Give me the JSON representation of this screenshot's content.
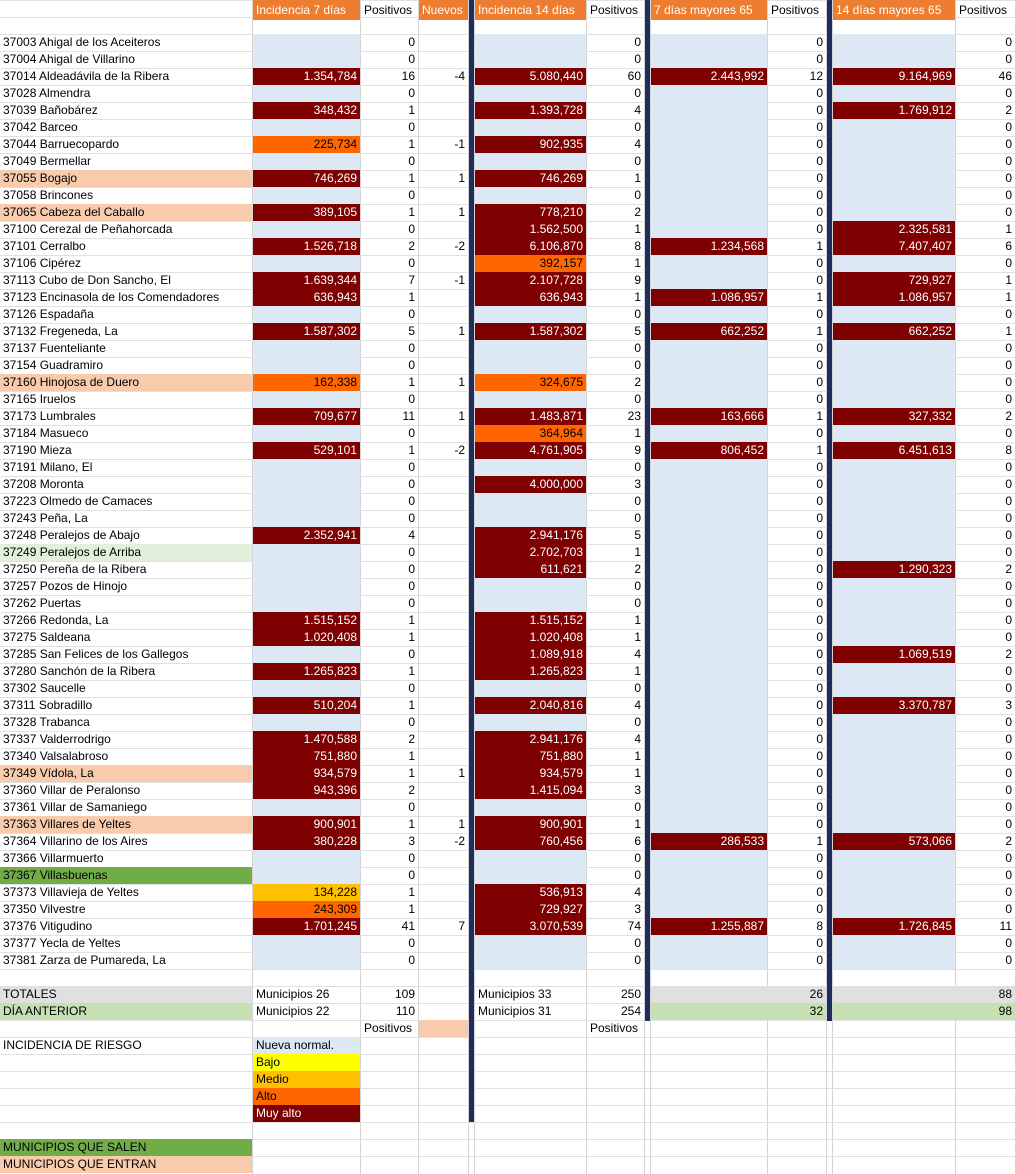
{
  "headers": {
    "inc7": "Incidencia 7 días",
    "pos7": "Positivos",
    "nuevos": "Nuevos",
    "inc14": "Incidencia 14 días",
    "pos14": "Positivos",
    "may7": "7 días mayores 65",
    "pos_may7": "Positivos",
    "may14": "14 días mayores 65",
    "pos_may14": "Positivos"
  },
  "rows": [
    {
      "m": "37003 Ahigal de los Aceiteros",
      "mc": "",
      "i7": "",
      "c7": "nn",
      "p7": "0",
      "n": "",
      "i14": "",
      "c14": "nn",
      "p14": "0",
      "m7": "",
      "cm7": "nn",
      "pm7": "0",
      "m14": "",
      "cm14": "nn",
      "pm14": "0"
    },
    {
      "m": "37004 Ahigal de Villarino",
      "mc": "",
      "i7": "",
      "c7": "nn",
      "p7": "0",
      "n": "",
      "i14": "",
      "c14": "nn",
      "p14": "0",
      "m7": "",
      "cm7": "nn",
      "pm7": "0",
      "m14": "",
      "cm14": "nn",
      "pm14": "0"
    },
    {
      "m": "37014 Aldeadávila de la Ribera",
      "mc": "",
      "i7": "1.354,784",
      "c7": "ma",
      "p7": "16",
      "n": "-4",
      "i14": "5.080,440",
      "c14": "ma",
      "p14": "60",
      "m7": "2.443,992",
      "cm7": "ma",
      "pm7": "12",
      "m14": "9.164,969",
      "cm14": "ma",
      "pm14": "46"
    },
    {
      "m": "37028 Almendra",
      "mc": "",
      "i7": "",
      "c7": "nn",
      "p7": "0",
      "n": "",
      "i14": "",
      "c14": "nn",
      "p14": "0",
      "m7": "",
      "cm7": "nn",
      "pm7": "0",
      "m14": "",
      "cm14": "nn",
      "pm14": "0"
    },
    {
      "m": "37039 Bañobárez",
      "mc": "",
      "i7": "348,432",
      "c7": "ma",
      "p7": "1",
      "n": "",
      "i14": "1.393,728",
      "c14": "ma",
      "p14": "4",
      "m7": "",
      "cm7": "nn",
      "pm7": "0",
      "m14": "1.769,912",
      "cm14": "ma",
      "pm14": "2"
    },
    {
      "m": "37042 Barceo",
      "mc": "",
      "i7": "",
      "c7": "nn",
      "p7": "0",
      "n": "",
      "i14": "",
      "c14": "nn",
      "p14": "0",
      "m7": "",
      "cm7": "nn",
      "pm7": "0",
      "m14": "",
      "cm14": "nn",
      "pm14": "0"
    },
    {
      "m": "37044 Barruecopardo",
      "mc": "",
      "i7": "225,734",
      "c7": "al",
      "p7": "1",
      "n": "-1",
      "i14": "902,935",
      "c14": "ma",
      "p14": "4",
      "m7": "",
      "cm7": "nn",
      "pm7": "0",
      "m14": "",
      "cm14": "nn",
      "pm14": "0"
    },
    {
      "m": "37049 Bermellar",
      "mc": "",
      "i7": "",
      "c7": "nn",
      "p7": "0",
      "n": "",
      "i14": "",
      "c14": "nn",
      "p14": "0",
      "m7": "",
      "cm7": "nn",
      "pm7": "0",
      "m14": "",
      "cm14": "nn",
      "pm14": "0"
    },
    {
      "m": "37055 Bogajo",
      "mc": "en",
      "i7": "746,269",
      "c7": "ma",
      "p7": "1",
      "n": "1",
      "i14": "746,269",
      "c14": "ma",
      "p14": "1",
      "m7": "",
      "cm7": "nn",
      "pm7": "0",
      "m14": "",
      "cm14": "nn",
      "pm14": "0"
    },
    {
      "m": "37058 Brincones",
      "mc": "",
      "i7": "",
      "c7": "nn",
      "p7": "0",
      "n": "",
      "i14": "",
      "c14": "nn",
      "p14": "0",
      "m7": "",
      "cm7": "nn",
      "pm7": "0",
      "m14": "",
      "cm14": "nn",
      "pm14": "0"
    },
    {
      "m": "37065 Cabeza del Caballo",
      "mc": "en",
      "i7": "389,105",
      "c7": "ma",
      "p7": "1",
      "n": "1",
      "i14": "778,210",
      "c14": "ma",
      "p14": "2",
      "m7": "",
      "cm7": "nn",
      "pm7": "0",
      "m14": "",
      "cm14": "nn",
      "pm14": "0"
    },
    {
      "m": "37100 Cerezal de Peñahorcada",
      "mc": "",
      "i7": "",
      "c7": "nn",
      "p7": "0",
      "n": "",
      "i14": "1.562,500",
      "c14": "ma",
      "p14": "1",
      "m7": "",
      "cm7": "nn",
      "pm7": "0",
      "m14": "2.325,581",
      "cm14": "ma",
      "pm14": "1"
    },
    {
      "m": "37101 Cerralbo",
      "mc": "",
      "i7": "1.526,718",
      "c7": "ma",
      "p7": "2",
      "n": "-2",
      "i14": "6.106,870",
      "c14": "ma",
      "p14": "8",
      "m7": "1.234,568",
      "cm7": "ma",
      "pm7": "1",
      "m14": "7.407,407",
      "cm14": "ma",
      "pm14": "6"
    },
    {
      "m": "37106 Cipérez",
      "mc": "",
      "i7": "",
      "c7": "nn",
      "p7": "0",
      "n": "",
      "i14": "392,157",
      "c14": "al",
      "p14": "1",
      "m7": "",
      "cm7": "nn",
      "pm7": "0",
      "m14": "",
      "cm14": "nn",
      "pm14": "0"
    },
    {
      "m": "37113 Cubo de Don Sancho, El",
      "mc": "",
      "i7": "1.639,344",
      "c7": "ma",
      "p7": "7",
      "n": "-1",
      "i14": "2.107,728",
      "c14": "ma",
      "p14": "9",
      "m7": "",
      "cm7": "nn",
      "pm7": "0",
      "m14": "729,927",
      "cm14": "ma",
      "pm14": "1"
    },
    {
      "m": "37123 Encinasola de los Comendadores",
      "mc": "",
      "i7": "636,943",
      "c7": "ma",
      "p7": "1",
      "n": "",
      "i14": "636,943",
      "c14": "ma",
      "p14": "1",
      "m7": "1.086,957",
      "cm7": "ma",
      "pm7": "1",
      "m14": "1.086,957",
      "cm14": "ma",
      "pm14": "1"
    },
    {
      "m": "37126 Espadaña",
      "mc": "",
      "i7": "",
      "c7": "nn",
      "p7": "0",
      "n": "",
      "i14": "",
      "c14": "nn",
      "p14": "0",
      "m7": "",
      "cm7": "nn",
      "pm7": "0",
      "m14": "",
      "cm14": "nn",
      "pm14": "0"
    },
    {
      "m": "37132 Fregeneda, La",
      "mc": "",
      "i7": "1.587,302",
      "c7": "ma",
      "p7": "5",
      "n": "1",
      "i14": "1.587,302",
      "c14": "ma",
      "p14": "5",
      "m7": "662,252",
      "cm7": "ma",
      "pm7": "1",
      "m14": "662,252",
      "cm14": "ma",
      "pm14": "1"
    },
    {
      "m": "37137 Fuenteliante",
      "mc": "",
      "i7": "",
      "c7": "nn",
      "p7": "0",
      "n": "",
      "i14": "",
      "c14": "nn",
      "p14": "0",
      "m7": "",
      "cm7": "nn",
      "pm7": "0",
      "m14": "",
      "cm14": "nn",
      "pm14": "0"
    },
    {
      "m": "37154 Guadramiro",
      "mc": "",
      "i7": "",
      "c7": "nn",
      "p7": "0",
      "n": "",
      "i14": "",
      "c14": "nn",
      "p14": "0",
      "m7": "",
      "cm7": "nn",
      "pm7": "0",
      "m14": "",
      "cm14": "nn",
      "pm14": "0"
    },
    {
      "m": "37160 Hinojosa de Duero",
      "mc": "en",
      "i7": "162,338",
      "c7": "al",
      "p7": "1",
      "n": "1",
      "i14": "324,675",
      "c14": "al",
      "p14": "2",
      "m7": "",
      "cm7": "nn",
      "pm7": "0",
      "m14": "",
      "cm14": "nn",
      "pm14": "0"
    },
    {
      "m": "37165 Iruelos",
      "mc": "",
      "i7": "",
      "c7": "nn",
      "p7": "0",
      "n": "",
      "i14": "",
      "c14": "nn",
      "p14": "0",
      "m7": "",
      "cm7": "nn",
      "pm7": "0",
      "m14": "",
      "cm14": "nn",
      "pm14": "0"
    },
    {
      "m": "37173 Lumbrales",
      "mc": "",
      "i7": "709,677",
      "c7": "ma",
      "p7": "11",
      "n": "1",
      "i14": "1.483,871",
      "c14": "ma",
      "p14": "23",
      "m7": "163,666",
      "cm7": "ma",
      "pm7": "1",
      "m14": "327,332",
      "cm14": "ma",
      "pm14": "2"
    },
    {
      "m": "37184 Masueco",
      "mc": "",
      "i7": "",
      "c7": "nn",
      "p7": "0",
      "n": "",
      "i14": "364,964",
      "c14": "al",
      "p14": "1",
      "m7": "",
      "cm7": "nn",
      "pm7": "0",
      "m14": "",
      "cm14": "nn",
      "pm14": "0"
    },
    {
      "m": "37190 Mieza",
      "mc": "",
      "i7": "529,101",
      "c7": "ma",
      "p7": "1",
      "n": "-2",
      "i14": "4.761,905",
      "c14": "ma",
      "p14": "9",
      "m7": "806,452",
      "cm7": "ma",
      "pm7": "1",
      "m14": "6.451,613",
      "cm14": "ma",
      "pm14": "8"
    },
    {
      "m": "37191 Milano, El",
      "mc": "",
      "i7": "",
      "c7": "nn",
      "p7": "0",
      "n": "",
      "i14": "",
      "c14": "nn",
      "p14": "0",
      "m7": "",
      "cm7": "nn",
      "pm7": "0",
      "m14": "",
      "cm14": "nn",
      "pm14": "0"
    },
    {
      "m": "37208 Moronta",
      "mc": "",
      "i7": "",
      "c7": "nn",
      "p7": "0",
      "n": "",
      "i14": "4.000,000",
      "c14": "ma",
      "p14": "3",
      "m7": "",
      "cm7": "nn",
      "pm7": "0",
      "m14": "",
      "cm14": "nn",
      "pm14": "0"
    },
    {
      "m": "37223 Olmedo de Camaces",
      "mc": "",
      "i7": "",
      "c7": "nn",
      "p7": "0",
      "n": "",
      "i14": "",
      "c14": "nn",
      "p14": "0",
      "m7": "",
      "cm7": "nn",
      "pm7": "0",
      "m14": "",
      "cm14": "nn",
      "pm14": "0"
    },
    {
      "m": "37243 Peña, La",
      "mc": "",
      "i7": "",
      "c7": "nn",
      "p7": "0",
      "n": "",
      "i14": "",
      "c14": "nn",
      "p14": "0",
      "m7": "",
      "cm7": "nn",
      "pm7": "0",
      "m14": "",
      "cm14": "nn",
      "pm14": "0"
    },
    {
      "m": "37248 Peralejos de Abajo",
      "mc": "",
      "i7": "2.352,941",
      "c7": "ma",
      "p7": "4",
      "n": "",
      "i14": "2.941,176",
      "c14": "ma",
      "p14": "5",
      "m7": "",
      "cm7": "nn",
      "pm7": "0",
      "m14": "",
      "cm14": "nn",
      "pm14": "0"
    },
    {
      "m": "37249 Peralejos de Arriba",
      "mc": "lg",
      "i7": "",
      "c7": "nn",
      "p7": "0",
      "n": "",
      "i14": "2.702,703",
      "c14": "ma",
      "p14": "1",
      "m7": "",
      "cm7": "nn",
      "pm7": "0",
      "m14": "",
      "cm14": "nn",
      "pm14": "0"
    },
    {
      "m": "37250 Pereña de la Ribera",
      "mc": "",
      "i7": "",
      "c7": "nn",
      "p7": "0",
      "n": "",
      "i14": "611,621",
      "c14": "ma",
      "p14": "2",
      "m7": "",
      "cm7": "nn",
      "pm7": "0",
      "m14": "1.290,323",
      "cm14": "ma",
      "pm14": "2"
    },
    {
      "m": "37257 Pozos de Hinojo",
      "mc": "",
      "i7": "",
      "c7": "nn",
      "p7": "0",
      "n": "",
      "i14": "",
      "c14": "nn",
      "p14": "0",
      "m7": "",
      "cm7": "nn",
      "pm7": "0",
      "m14": "",
      "cm14": "nn",
      "pm14": "0"
    },
    {
      "m": "37262 Puertas",
      "mc": "",
      "i7": "",
      "c7": "nn",
      "p7": "0",
      "n": "",
      "i14": "",
      "c14": "nn",
      "p14": "0",
      "m7": "",
      "cm7": "nn",
      "pm7": "0",
      "m14": "",
      "cm14": "nn",
      "pm14": "0"
    },
    {
      "m": "37266 Redonda, La",
      "mc": "",
      "i7": "1.515,152",
      "c7": "ma",
      "p7": "1",
      "n": "",
      "i14": "1.515,152",
      "c14": "ma",
      "p14": "1",
      "m7": "",
      "cm7": "nn",
      "pm7": "0",
      "m14": "",
      "cm14": "nn",
      "pm14": "0"
    },
    {
      "m": "37275 Saldeana",
      "mc": "",
      "i7": "1.020,408",
      "c7": "ma",
      "p7": "1",
      "n": "",
      "i14": "1.020,408",
      "c14": "ma",
      "p14": "1",
      "m7": "",
      "cm7": "nn",
      "pm7": "0",
      "m14": "",
      "cm14": "nn",
      "pm14": "0"
    },
    {
      "m": "37285 San Felices de los Gallegos",
      "mc": "",
      "i7": "",
      "c7": "nn",
      "p7": "0",
      "n": "",
      "i14": "1.089,918",
      "c14": "ma",
      "p14": "4",
      "m7": "",
      "cm7": "nn",
      "pm7": "0",
      "m14": "1.069,519",
      "cm14": "ma",
      "pm14": "2"
    },
    {
      "m": "37280 Sanchón de la Ribera",
      "mc": "",
      "i7": "1.265,823",
      "c7": "ma",
      "p7": "1",
      "n": "",
      "i14": "1.265,823",
      "c14": "ma",
      "p14": "1",
      "m7": "",
      "cm7": "nn",
      "pm7": "0",
      "m14": "",
      "cm14": "nn",
      "pm14": "0"
    },
    {
      "m": "37302 Saucelle",
      "mc": "",
      "i7": "",
      "c7": "nn",
      "p7": "0",
      "n": "",
      "i14": "",
      "c14": "nn",
      "p14": "0",
      "m7": "",
      "cm7": "nn",
      "pm7": "0",
      "m14": "",
      "cm14": "nn",
      "pm14": "0"
    },
    {
      "m": "37311 Sobradillo",
      "mc": "",
      "i7": "510,204",
      "c7": "ma",
      "p7": "1",
      "n": "",
      "i14": "2.040,816",
      "c14": "ma",
      "p14": "4",
      "m7": "",
      "cm7": "nn",
      "pm7": "0",
      "m14": "3.370,787",
      "cm14": "ma",
      "pm14": "3"
    },
    {
      "m": "37328 Trabanca",
      "mc": "",
      "i7": "",
      "c7": "nn",
      "p7": "0",
      "n": "",
      "i14": "",
      "c14": "nn",
      "p14": "0",
      "m7": "",
      "cm7": "nn",
      "pm7": "0",
      "m14": "",
      "cm14": "nn",
      "pm14": "0"
    },
    {
      "m": "37337 Valderrodrigo",
      "mc": "",
      "i7": "1.470,588",
      "c7": "ma",
      "p7": "2",
      "n": "",
      "i14": "2.941,176",
      "c14": "ma",
      "p14": "4",
      "m7": "",
      "cm7": "nn",
      "pm7": "0",
      "m14": "",
      "cm14": "nn",
      "pm14": "0"
    },
    {
      "m": "37340 Valsalabroso",
      "mc": "",
      "i7": "751,880",
      "c7": "ma",
      "p7": "1",
      "n": "",
      "i14": "751,880",
      "c14": "ma",
      "p14": "1",
      "m7": "",
      "cm7": "nn",
      "pm7": "0",
      "m14": "",
      "cm14": "nn",
      "pm14": "0"
    },
    {
      "m": "37349 Vídola, La",
      "mc": "en",
      "i7": "934,579",
      "c7": "ma",
      "p7": "1",
      "n": "1",
      "i14": "934,579",
      "c14": "ma",
      "p14": "1",
      "m7": "",
      "cm7": "nn",
      "pm7": "0",
      "m14": "",
      "cm14": "nn",
      "pm14": "0"
    },
    {
      "m": "37360 Villar de Peralonso",
      "mc": "",
      "i7": "943,396",
      "c7": "ma",
      "p7": "2",
      "n": "",
      "i14": "1.415,094",
      "c14": "ma",
      "p14": "3",
      "m7": "",
      "cm7": "nn",
      "pm7": "0",
      "m14": "",
      "cm14": "nn",
      "pm14": "0"
    },
    {
      "m": "37361 Villar de Samaniego",
      "mc": "",
      "i7": "",
      "c7": "nn",
      "p7": "0",
      "n": "",
      "i14": "",
      "c14": "nn",
      "p14": "0",
      "m7": "",
      "cm7": "nn",
      "pm7": "0",
      "m14": "",
      "cm14": "nn",
      "pm14": "0"
    },
    {
      "m": "37363 Villares de Yeltes",
      "mc": "en",
      "i7": "900,901",
      "c7": "ma",
      "p7": "1",
      "n": "1",
      "i14": "900,901",
      "c14": "ma",
      "p14": "1",
      "m7": "",
      "cm7": "nn",
      "pm7": "0",
      "m14": "",
      "cm14": "nn",
      "pm14": "0"
    },
    {
      "m": "37364 Villarino de los Aires",
      "mc": "",
      "i7": "380,228",
      "c7": "ma",
      "p7": "3",
      "n": "-2",
      "i14": "760,456",
      "c14": "ma",
      "p14": "6",
      "m7": "286,533",
      "cm7": "ma",
      "pm7": "1",
      "m14": "573,066",
      "cm14": "ma",
      "pm14": "2"
    },
    {
      "m": "37366 Villarmuerto",
      "mc": "",
      "i7": "",
      "c7": "nn",
      "p7": "0",
      "n": "",
      "i14": "",
      "c14": "nn",
      "p14": "0",
      "m7": "",
      "cm7": "nn",
      "pm7": "0",
      "m14": "",
      "cm14": "nn",
      "pm14": "0"
    },
    {
      "m": "37367 Villasbuenas",
      "mc": "sa",
      "i7": "",
      "c7": "nn",
      "p7": "0",
      "n": "",
      "i14": "",
      "c14": "nn",
      "p14": "0",
      "m7": "",
      "cm7": "nn",
      "pm7": "0",
      "m14": "",
      "cm14": "nn",
      "pm14": "0"
    },
    {
      "m": "37373 Villavieja de Yeltes",
      "mc": "",
      "i7": "134,228",
      "c7": "md",
      "p7": "1",
      "n": "",
      "i14": "536,913",
      "c14": "ma",
      "p14": "4",
      "m7": "",
      "cm7": "nn",
      "pm7": "0",
      "m14": "",
      "cm14": "nn",
      "pm14": "0"
    },
    {
      "m": "37350 Vilvestre",
      "mc": "",
      "i7": "243,309",
      "c7": "al",
      "p7": "1",
      "n": "",
      "i14": "729,927",
      "c14": "ma",
      "p14": "3",
      "m7": "",
      "cm7": "nn",
      "pm7": "0",
      "m14": "",
      "cm14": "nn",
      "pm14": "0"
    },
    {
      "m": "37376 Vitigudino",
      "mc": "",
      "i7": "1.701,245",
      "c7": "ma",
      "p7": "41",
      "n": "7",
      "i14": "3.070,539",
      "c14": "ma",
      "p14": "74",
      "m7": "1.255,887",
      "cm7": "ma",
      "pm7": "8",
      "m14": "1.726,845",
      "cm14": "ma",
      "pm14": "11"
    },
    {
      "m": "37377 Yecla de Yeltes",
      "mc": "",
      "i7": "",
      "c7": "nn",
      "p7": "0",
      "n": "",
      "i14": "",
      "c14": "nn",
      "p14": "0",
      "m7": "",
      "cm7": "nn",
      "pm7": "0",
      "m14": "",
      "cm14": "nn",
      "pm14": "0"
    },
    {
      "m": "37381 Zarza de Pumareda, La",
      "mc": "",
      "i7": "",
      "c7": "nn",
      "p7": "0",
      "n": "",
      "i14": "",
      "c14": "nn",
      "p14": "0",
      "m7": "",
      "cm7": "nn",
      "pm7": "0",
      "m14": "",
      "cm14": "nn",
      "pm14": "0"
    }
  ],
  "totales": {
    "label": "TOTALES",
    "mun7": "Municipios 26",
    "pos7": "109",
    "mun14": "Municipios 33",
    "pos14": "250",
    "pos_may7": "26",
    "pos_may14": "88"
  },
  "anterior": {
    "label": "DÍA ANTERIOR",
    "mun7": "Municipios 22",
    "pos7": "110",
    "mun14": "Municipios 31",
    "pos14": "254",
    "pos_may7": "32",
    "pos_may14": "98"
  },
  "sub_headers": {
    "pos7": "Positivos",
    "pos14": "Positivos"
  },
  "legend": {
    "title": "INCIDENCIA DE RIESGO",
    "items": [
      {
        "label": "Nueva normal.",
        "cls": "nn"
      },
      {
        "label": "Bajo",
        "cls": "bj"
      },
      {
        "label": "Medio",
        "cls": "md"
      },
      {
        "label": "Alto",
        "cls": "al"
      },
      {
        "label": "Muy alto",
        "cls": "ma"
      }
    ]
  },
  "salen": "MUNICIPIOS QUE SALEN",
  "entran": "MUNICIPIOS QUE ENTRAN",
  "colors": {
    "header_orange": "#ed7d31",
    "nueva_normal": "#dce9f5",
    "bajo": "#ffff00",
    "medio": "#ffc000",
    "alto": "#ff6600",
    "muy_alto": "#7f0000",
    "entran": "#f8cbad",
    "salen": "#70ad47",
    "separator": "#1f2d5c"
  }
}
